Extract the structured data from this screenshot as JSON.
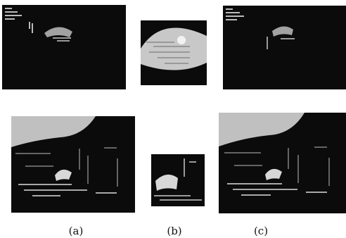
{
  "captions": {
    "a": "(a)",
    "b": "(b)",
    "c": "(c)"
  },
  "figure": {
    "panel_background": "#0b0b0b",
    "texture_color": "#d8d8d8"
  }
}
